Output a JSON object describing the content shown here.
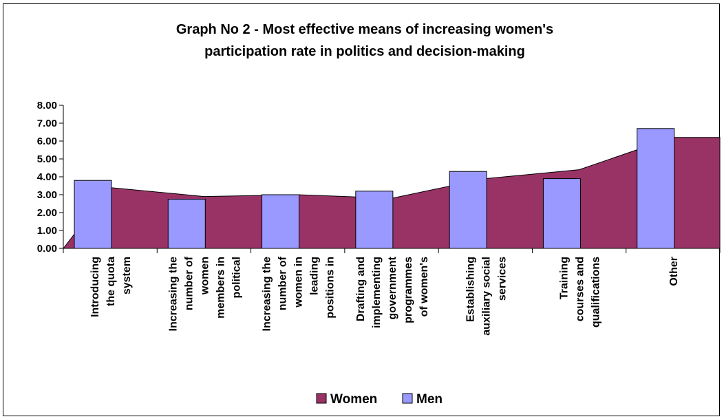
{
  "chart_data": {
    "type": "bar",
    "title": [
      "Graph No 2 - Most effective means of increasing women's",
      "participation rate in politics and decision-making"
    ],
    "xlabel": "",
    "ylabel": "",
    "ylim": [
      0,
      8
    ],
    "yticks": [
      "0.00",
      "1.00",
      "2.00",
      "3.00",
      "4.00",
      "5.00",
      "6.00",
      "7.00",
      "8.00"
    ],
    "categories": [
      [
        "Introducing",
        "the quota",
        "system"
      ],
      [
        "Increasing the",
        "number of",
        "women",
        "members in",
        "political"
      ],
      [
        "Increasing the",
        "number of",
        "women in",
        "leading",
        "positions in"
      ],
      [
        "Drafting and",
        "implementing",
        "government",
        "programmes",
        "of women's"
      ],
      [
        "Establishing",
        "auxiliary social",
        "services"
      ],
      [
        "Training",
        "courses and",
        "qualifications"
      ],
      [
        "Other"
      ]
    ],
    "series": [
      {
        "name": "Women",
        "type": "area",
        "color": "#993366",
        "values": [
          3.4,
          2.9,
          3.0,
          2.8,
          3.9,
          4.4,
          6.2
        ]
      },
      {
        "name": "Men",
        "type": "bar",
        "color": "#9999ff",
        "values": [
          3.8,
          2.75,
          3.0,
          3.2,
          4.3,
          3.9,
          6.7
        ]
      }
    ],
    "grid": false,
    "legend_position": "bottom"
  }
}
